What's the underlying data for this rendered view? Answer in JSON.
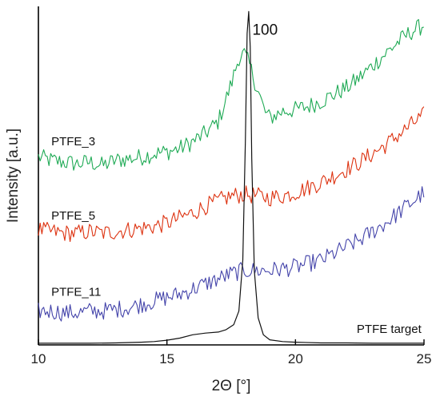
{
  "chart_data": {
    "type": "line",
    "title": "",
    "xlabel": "2Θ [°]",
    "ylabel": "Intensity [a.u.]",
    "xlim": [
      10,
      25
    ],
    "ylim": [
      0,
      100
    ],
    "x_ticks": [
      10,
      15,
      20,
      25
    ],
    "y_ticks_shown": false,
    "grid": false,
    "legend": "none",
    "annotations": [
      {
        "text": "100",
        "x": 18.2,
        "y": 98.5
      }
    ],
    "series": [
      {
        "name": "PTFE_3",
        "color": "#1faa55",
        "x": [
          10,
          10.5,
          11,
          11.5,
          12,
          12.5,
          13,
          13.5,
          14,
          14.5,
          15,
          15.5,
          16,
          16.5,
          17,
          17.5,
          17.8,
          18,
          18.2,
          18.5,
          18.8,
          19,
          19.5,
          20,
          20.5,
          21,
          21.5,
          22,
          22.5,
          23,
          23.5,
          24,
          24.5,
          25
        ],
        "values": [
          55.5,
          54.5,
          54,
          53.5,
          54,
          53,
          54.5,
          55,
          55.5,
          56.5,
          57,
          58,
          60,
          62.5,
          66,
          77,
          85,
          86,
          83,
          76,
          69,
          67,
          69,
          69.5,
          70.5,
          72,
          74,
          76,
          79,
          82.5,
          86,
          89.5,
          92.5,
          94.5
        ]
      },
      {
        "name": "PTFE_5",
        "color": "#dd3311",
        "x": [
          10,
          10.5,
          11,
          11.5,
          12,
          12.5,
          13,
          13.5,
          14,
          14.5,
          15,
          15.5,
          16,
          16.5,
          17,
          17.5,
          18,
          18.5,
          19,
          19.5,
          20,
          20.5,
          21,
          21.5,
          22,
          22.5,
          23,
          23.5,
          24,
          24.5,
          25
        ],
        "values": [
          34,
          33.5,
          33,
          33,
          33.5,
          33,
          33.5,
          34,
          34.5,
          35,
          36,
          37.5,
          39,
          41,
          42.5,
          44,
          44.5,
          44,
          43.5,
          44,
          45,
          46.5,
          48,
          50,
          52,
          54,
          56.5,
          59,
          62,
          65,
          68
        ]
      },
      {
        "name": "PTFE_11",
        "color": "#4444aa",
        "x": [
          10,
          10.5,
          11,
          11.5,
          12,
          12.5,
          13,
          13.5,
          14,
          14.5,
          15,
          15.5,
          16,
          16.5,
          17,
          17.5,
          18,
          18.5,
          19,
          19.5,
          20,
          20.5,
          21,
          21.5,
          22,
          22.5,
          23,
          23.5,
          24,
          24.5,
          25
        ],
        "values": [
          10,
          10,
          9.5,
          9.5,
          10,
          10,
          10.5,
          11,
          12,
          13,
          14,
          15,
          16.5,
          18,
          19.5,
          21,
          22,
          22,
          22,
          22.5,
          23,
          24,
          25,
          27,
          29,
          31,
          33.5,
          36,
          39,
          42,
          45
        ]
      },
      {
        "name": "PTFE target",
        "color": "#111111",
        "x": [
          10,
          11,
          12,
          13,
          14,
          14.5,
          15,
          15.5,
          16,
          16.5,
          17,
          17.3,
          17.6,
          17.8,
          17.95,
          18.05,
          18.12,
          18.18,
          18.24,
          18.3,
          18.4,
          18.55,
          18.75,
          19,
          19.5,
          20,
          21,
          22,
          23,
          24,
          25
        ],
        "values": [
          0.5,
          0.5,
          0.5,
          0.6,
          0.8,
          1,
          1.4,
          2,
          3,
          3.5,
          3.8,
          4.5,
          6,
          10,
          25,
          60,
          92,
          98.5,
          88,
          55,
          22,
          8,
          3,
          1.5,
          1,
          0.8,
          0.6,
          0.6,
          0.5,
          0.5,
          0.5
        ]
      }
    ]
  }
}
